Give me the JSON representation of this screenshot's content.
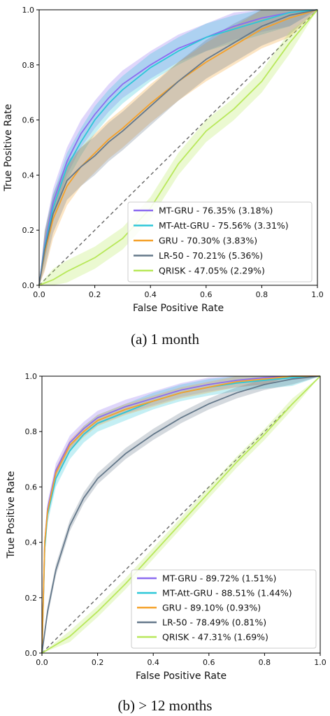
{
  "chart_data": [
    {
      "type": "line",
      "caption": "(a) 1 month",
      "xlabel": "False Positive Rate",
      "ylabel": "True Positive Rate",
      "xlim": [
        0,
        1
      ],
      "ylim": [
        0,
        1
      ],
      "xticks": [
        "0.0",
        "0.2",
        "0.4",
        "0.6",
        "0.8",
        "1.0"
      ],
      "yticks": [
        "0.0",
        "0.2",
        "0.4",
        "0.6",
        "0.8",
        "1.0"
      ],
      "grid": false,
      "legend_position": "lower-right",
      "chance_line": true,
      "series": [
        {
          "name": "MT-GRU - 76.35% (3.18%)",
          "color": "#8c6cf0",
          "band": 0.05,
          "x": [
            0,
            0.02,
            0.05,
            0.1,
            0.15,
            0.2,
            0.25,
            0.3,
            0.4,
            0.5,
            0.6,
            0.7,
            0.8,
            0.9,
            1.0
          ],
          "y": [
            0,
            0.15,
            0.3,
            0.45,
            0.55,
            0.62,
            0.68,
            0.73,
            0.8,
            0.86,
            0.9,
            0.94,
            0.97,
            0.99,
            1.0
          ]
        },
        {
          "name": "MT-Att-GRU - 75.56% (3.31%)",
          "color": "#2cc7d8",
          "band": 0.05,
          "x": [
            0,
            0.02,
            0.05,
            0.1,
            0.15,
            0.2,
            0.25,
            0.3,
            0.4,
            0.5,
            0.6,
            0.7,
            0.8,
            0.9,
            1.0
          ],
          "y": [
            0,
            0.14,
            0.28,
            0.43,
            0.52,
            0.6,
            0.66,
            0.71,
            0.79,
            0.85,
            0.9,
            0.93,
            0.96,
            0.99,
            1.0
          ]
        },
        {
          "name": "GRU - 70.30% (3.83%)",
          "color": "#f5a12a",
          "band": 0.07,
          "x": [
            0,
            0.02,
            0.05,
            0.1,
            0.15,
            0.2,
            0.25,
            0.3,
            0.4,
            0.5,
            0.6,
            0.7,
            0.8,
            0.9,
            1.0
          ],
          "y": [
            0,
            0.12,
            0.24,
            0.36,
            0.43,
            0.48,
            0.53,
            0.57,
            0.66,
            0.74,
            0.81,
            0.87,
            0.93,
            0.97,
            1.0
          ]
        },
        {
          "name": "LR-50 - 70.21% (5.36%)",
          "color": "#64788a",
          "band": 0.07,
          "x": [
            0,
            0.02,
            0.05,
            0.1,
            0.15,
            0.2,
            0.25,
            0.3,
            0.4,
            0.5,
            0.6,
            0.7,
            0.8,
            0.9,
            1.0
          ],
          "y": [
            0,
            0.13,
            0.26,
            0.38,
            0.43,
            0.47,
            0.52,
            0.56,
            0.65,
            0.74,
            0.82,
            0.88,
            0.94,
            0.98,
            1.0
          ]
        },
        {
          "name": "QRISK - 47.05% (2.29%)",
          "color": "#b8e85a",
          "band": 0.04,
          "x": [
            0,
            0.05,
            0.1,
            0.2,
            0.3,
            0.4,
            0.5,
            0.6,
            0.7,
            0.8,
            0.9,
            1.0
          ],
          "y": [
            0,
            0.02,
            0.05,
            0.1,
            0.17,
            0.28,
            0.44,
            0.56,
            0.64,
            0.74,
            0.88,
            1.0
          ]
        }
      ]
    },
    {
      "type": "line",
      "caption": "(b) > 12 months",
      "xlabel": "False Positive Rate",
      "ylabel": "True Positive Rate",
      "xlim": [
        0,
        1
      ],
      "ylim": [
        0,
        1
      ],
      "xticks": [
        "0.0",
        "0.2",
        "0.4",
        "0.6",
        "0.8",
        "1.0"
      ],
      "yticks": [
        "0.0",
        "0.2",
        "0.4",
        "0.6",
        "0.8",
        "1.0"
      ],
      "grid": false,
      "legend_position": "lower-right",
      "chance_line": true,
      "series": [
        {
          "name": "MT-GRU - 89.72% (1.51%)",
          "color": "#8c6cf0",
          "band": 0.025,
          "x": [
            0,
            0.01,
            0.02,
            0.05,
            0.1,
            0.15,
            0.2,
            0.3,
            0.4,
            0.5,
            0.6,
            0.7,
            0.8,
            0.9,
            1.0
          ],
          "y": [
            0,
            0.4,
            0.52,
            0.66,
            0.76,
            0.81,
            0.85,
            0.89,
            0.92,
            0.95,
            0.97,
            0.985,
            0.995,
            1.0,
            1.0
          ]
        },
        {
          "name": "MT-Att-GRU - 88.51% (1.44%)",
          "color": "#2cc7d8",
          "band": 0.03,
          "x": [
            0,
            0.01,
            0.02,
            0.05,
            0.1,
            0.15,
            0.2,
            0.3,
            0.4,
            0.5,
            0.6,
            0.7,
            0.8,
            0.9,
            1.0
          ],
          "y": [
            0,
            0.38,
            0.5,
            0.63,
            0.73,
            0.79,
            0.83,
            0.87,
            0.91,
            0.94,
            0.96,
            0.975,
            0.985,
            0.995,
            1.0
          ]
        },
        {
          "name": "GRU - 89.10% (0.93%)",
          "color": "#f5a12a",
          "band": 0.02,
          "x": [
            0,
            0.01,
            0.02,
            0.05,
            0.1,
            0.15,
            0.2,
            0.3,
            0.4,
            0.5,
            0.6,
            0.7,
            0.8,
            0.9,
            1.0
          ],
          "y": [
            0,
            0.4,
            0.51,
            0.65,
            0.75,
            0.8,
            0.84,
            0.88,
            0.91,
            0.94,
            0.96,
            0.98,
            0.99,
            1.0,
            1.0
          ]
        },
        {
          "name": "LR-50 - 78.49% (0.81%)",
          "color": "#64788a",
          "band": 0.02,
          "x": [
            0,
            0.02,
            0.05,
            0.1,
            0.15,
            0.2,
            0.3,
            0.4,
            0.5,
            0.6,
            0.7,
            0.8,
            0.9,
            1.0
          ],
          "y": [
            0,
            0.15,
            0.3,
            0.46,
            0.56,
            0.63,
            0.72,
            0.79,
            0.85,
            0.9,
            0.94,
            0.97,
            0.99,
            1.0
          ]
        },
        {
          "name": "QRISK - 47.31% (1.69%)",
          "color": "#b8e85a",
          "band": 0.02,
          "x": [
            0,
            0.1,
            0.2,
            0.3,
            0.4,
            0.5,
            0.6,
            0.7,
            0.8,
            0.9,
            1.0
          ],
          "y": [
            0,
            0.06,
            0.15,
            0.25,
            0.36,
            0.47,
            0.58,
            0.69,
            0.79,
            0.9,
            1.0
          ]
        }
      ]
    }
  ]
}
